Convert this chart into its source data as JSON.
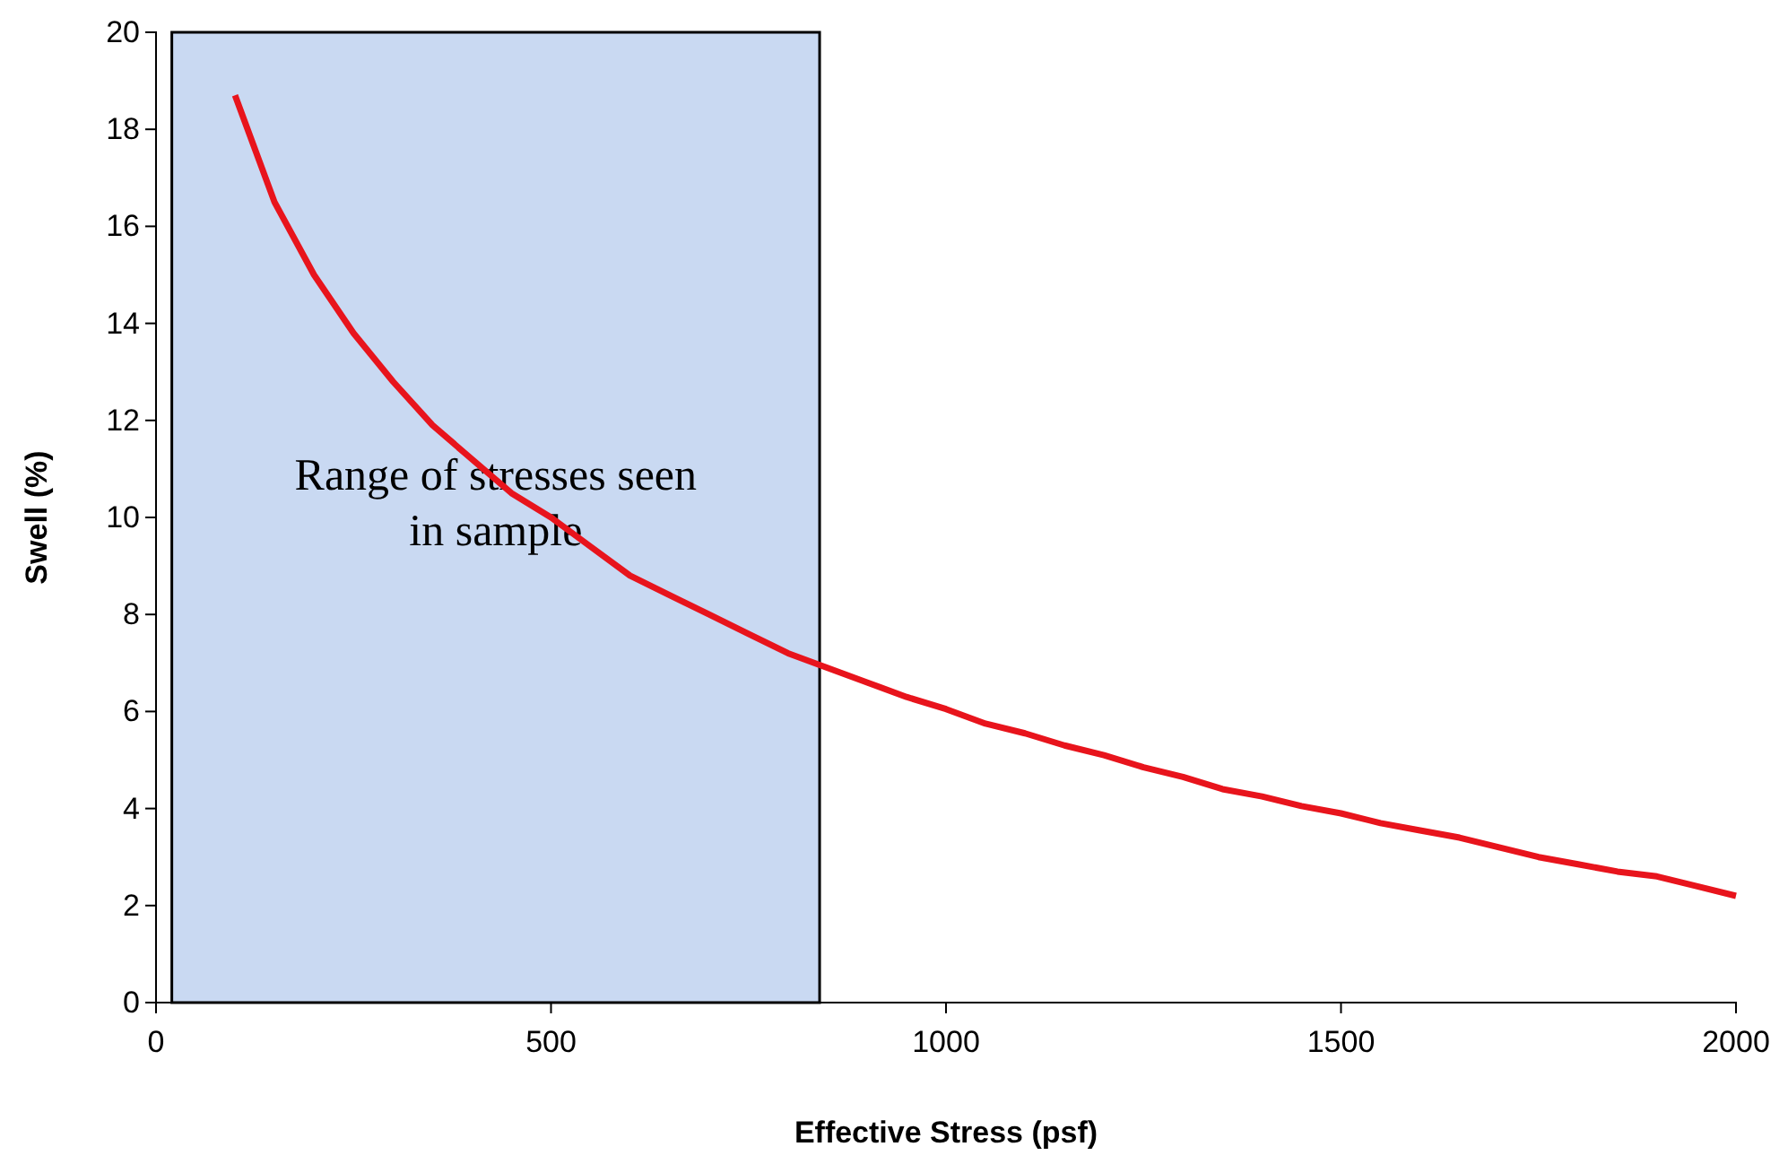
{
  "chart_data": {
    "type": "line",
    "xlabel": "Effective Stress (psf)",
    "ylabel": "Swell (%)",
    "x": [
      100,
      150,
      200,
      250,
      300,
      350,
      400,
      450,
      500,
      550,
      600,
      650,
      700,
      750,
      800,
      850,
      900,
      950,
      1000,
      1050,
      1100,
      1150,
      1200,
      1250,
      1300,
      1350,
      1400,
      1450,
      1500,
      1550,
      1600,
      1650,
      1700,
      1750,
      1800,
      1850,
      1900,
      1950,
      2000
    ],
    "series": [
      {
        "color": "#e8141c",
        "values": [
          18.7,
          16.5,
          15.0,
          13.8,
          12.8,
          11.9,
          11.2,
          10.5,
          10.0,
          9.4,
          8.8,
          8.4,
          8.0,
          7.6,
          7.2,
          6.9,
          6.6,
          6.3,
          6.05,
          5.75,
          5.55,
          5.3,
          5.1,
          4.85,
          4.65,
          4.4,
          4.25,
          4.05,
          3.9,
          3.7,
          3.55,
          3.4,
          3.2,
          3.0,
          2.85,
          2.7,
          2.6,
          2.4,
          2.2
        ]
      }
    ],
    "xlim": [
      0,
      2000
    ],
    "xticks": [
      0,
      500,
      1000,
      1500,
      2000
    ],
    "ylim": [
      0,
      20
    ],
    "yticks": [
      0,
      2,
      4,
      6,
      8,
      10,
      12,
      14,
      16,
      18,
      20
    ],
    "bands": [
      {
        "axis": "x",
        "from": 20,
        "to": 840,
        "label": "Range of stresses seen\nin sample",
        "color": "#c9d9f2"
      }
    ],
    "grid": false,
    "marker": "none",
    "line_style": "solid"
  }
}
